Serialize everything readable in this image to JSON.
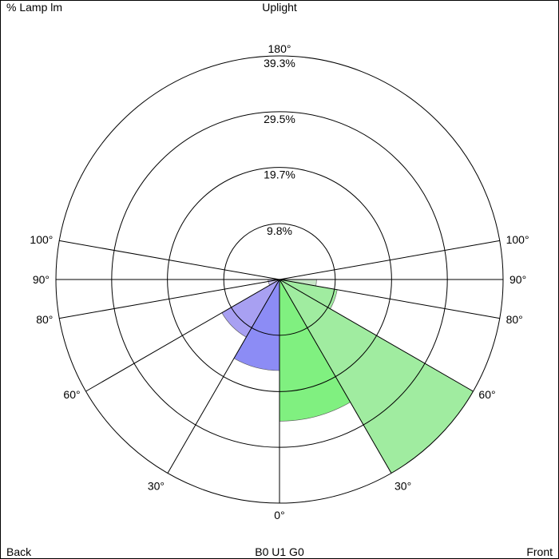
{
  "labels": {
    "top_left": "% Lamp lm",
    "top_center": "Uplight",
    "bottom_left": "Back",
    "bottom_center": "B0 U1 G0",
    "bottom_right": "Front"
  },
  "chart_data": {
    "type": "polar-zonal",
    "rings": [
      {
        "value": 9.8,
        "label": "9.8%"
      },
      {
        "value": 19.7,
        "label": "19.7%"
      },
      {
        "value": 29.5,
        "label": "29.5%"
      },
      {
        "value": 39.3,
        "label": "39.3%"
      }
    ],
    "top_angle_label": "180°",
    "r_max": 39.3,
    "angle_lines": [
      0,
      30,
      60,
      80,
      90,
      100
    ],
    "angle_labels": [
      {
        "angle": 0,
        "text": "0°",
        "side": "center"
      },
      {
        "angle": 30,
        "text": "30°",
        "side": "back"
      },
      {
        "angle": 60,
        "text": "60°",
        "side": "back"
      },
      {
        "angle": 80,
        "text": "80°",
        "side": "back"
      },
      {
        "angle": 90,
        "text": "90°",
        "side": "back"
      },
      {
        "angle": 100,
        "text": "100°",
        "side": "back"
      },
      {
        "angle": 30,
        "text": "30°",
        "side": "front"
      },
      {
        "angle": 60,
        "text": "60°",
        "side": "front"
      },
      {
        "angle": 80,
        "text": "80°",
        "side": "front"
      },
      {
        "angle": 90,
        "text": "90°",
        "side": "front"
      },
      {
        "angle": 100,
        "text": "100°",
        "side": "front"
      }
    ],
    "colors": {
      "front_low": "#80f080",
      "front_mid": "#a0eca0",
      "front_high": "#c8e6c8",
      "back_low": "#8c8cf5",
      "back_mid": "#a8a0f2",
      "back_high": "#ccc6f0"
    },
    "series": [
      {
        "side": "front",
        "zone": [
          0,
          30
        ],
        "value": 24.9,
        "color_key": "front_low"
      },
      {
        "side": "front",
        "zone": [
          30,
          60
        ],
        "value": 39.3,
        "color_key": "front_mid"
      },
      {
        "side": "front",
        "zone": [
          60,
          80
        ],
        "value": 10.3,
        "color_key": "front_mid"
      },
      {
        "side": "front",
        "zone": [
          80,
          90
        ],
        "value": 6.5,
        "color_key": "front_high"
      },
      {
        "side": "back",
        "zone": [
          0,
          30
        ],
        "value": 16.0,
        "color_key": "back_low"
      },
      {
        "side": "back",
        "zone": [
          30,
          60
        ],
        "value": 11.7,
        "color_key": "back_mid"
      },
      {
        "side": "back",
        "zone": [
          60,
          80
        ],
        "value": 2.0,
        "color_key": "back_high"
      },
      {
        "side": "back",
        "zone": [
          80,
          90
        ],
        "value": 2.0,
        "color_key": "back_high"
      }
    ]
  }
}
